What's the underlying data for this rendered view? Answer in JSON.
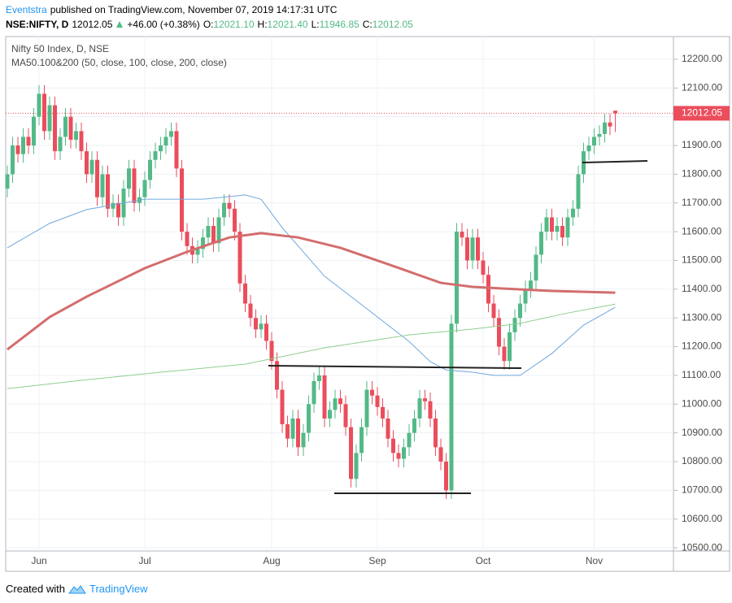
{
  "header": {
    "author": "Eventstra",
    "published": "published on TradingView.com, November 07, 2019 14:17:31 UTC",
    "symbol": "NSE:NIFTY, D",
    "last": "12012.05",
    "change": "+46.00 (+0.38%)",
    "ohlc": [
      {
        "label": "O:",
        "value": "12021.10"
      },
      {
        "label": "H:",
        "value": "12021.40"
      },
      {
        "label": "L:",
        "value": "11946.85"
      },
      {
        "label": "C:",
        "value": "12012.05"
      }
    ]
  },
  "footer": {
    "text": "Created with",
    "brand": "TradingView"
  },
  "chart_data": {
    "type": "candlestick",
    "title": "Nifty 50 Index, D, NSE",
    "subtitle": "MA50.100&200 (50, close, 100, close, 200, close)",
    "categories": [
      null,
      null,
      null,
      null,
      null,
      null,
      "Jun",
      null,
      null,
      null,
      null,
      null,
      null,
      null,
      null,
      null,
      null,
      null,
      null,
      null,
      null,
      null,
      null,
      null,
      null,
      null,
      "Jul",
      null,
      null,
      null,
      null,
      null,
      null,
      null,
      null,
      null,
      null,
      null,
      null,
      null,
      null,
      null,
      null,
      null,
      null,
      null,
      null,
      null,
      null,
      null,
      "Aug",
      null,
      null,
      null,
      null,
      null,
      null,
      null,
      null,
      null,
      null,
      null,
      null,
      null,
      null,
      null,
      null,
      null,
      null,
      null,
      "Sep",
      null,
      null,
      null,
      null,
      null,
      null,
      null,
      null,
      null,
      null,
      null,
      null,
      null,
      null,
      null,
      null,
      null,
      null,
      null,
      "Oct",
      null,
      null,
      null,
      null,
      null,
      null,
      null,
      null,
      null,
      null,
      null,
      null,
      null,
      null,
      null,
      null,
      null,
      null,
      null,
      null,
      "Nov",
      null,
      null,
      null,
      null
    ],
    "open": [
      11750,
      11800,
      11900,
      11870,
      11930,
      11900,
      12000,
      12080,
      11950,
      12040,
      11880,
      11930,
      12000,
      11920,
      11950,
      11880,
      11800,
      11850,
      11720,
      11800,
      11680,
      11700,
      11650,
      11750,
      11820,
      11700,
      11720,
      11780,
      11850,
      11880,
      11900,
      11930,
      11950,
      11820,
      11600,
      11550,
      11520,
      11540,
      11580,
      11620,
      11560,
      11650,
      11700,
      11680,
      11600,
      11420,
      11350,
      11300,
      11260,
      11280,
      11220,
      11150,
      11050,
      10930,
      10880,
      10950,
      10850,
      10900,
      11000,
      11080,
      11100,
      10950,
      10980,
      11020,
      11000,
      10920,
      10740,
      10830,
      10920,
      11050,
      11030,
      10990,
      10950,
      10880,
      10830,
      10810,
      10850,
      10900,
      10950,
      11020,
      11010,
      10950,
      10850,
      10800,
      10700,
      11280,
      11600,
      11580,
      11500,
      11580,
      11500,
      11450,
      11350,
      11300,
      11200,
      11150,
      11250,
      11300,
      11350,
      11400,
      11430,
      11520,
      11600,
      11650,
      11600,
      11620,
      11580,
      11650,
      11680,
      11800,
      11880,
      11900,
      11930,
      11940,
      11980,
      12021.1
    ],
    "high": [
      11830,
      11930,
      11930,
      11960,
      11960,
      12030,
      12110,
      12110,
      12070,
      12070,
      11960,
      12030,
      12030,
      11980,
      11980,
      11910,
      11880,
      11880,
      11830,
      11830,
      11730,
      11730,
      11780,
      11850,
      11850,
      11750,
      11810,
      11880,
      11910,
      11930,
      11960,
      11980,
      11980,
      11850,
      11630,
      11580,
      11570,
      11610,
      11650,
      11650,
      11680,
      11730,
      11730,
      11710,
      11630,
      11450,
      11380,
      11330,
      11310,
      11310,
      11250,
      11180,
      11080,
      10960,
      10980,
      10980,
      10930,
      11030,
      11110,
      11130,
      11130,
      11010,
      11050,
      11050,
      11030,
      10950,
      10860,
      10950,
      11080,
      11080,
      11060,
      11020,
      10980,
      10910,
      10860,
      10880,
      10930,
      10980,
      11050,
      11050,
      11040,
      10980,
      10880,
      10830,
      11310,
      11630,
      11630,
      11610,
      11610,
      11610,
      11530,
      11480,
      11380,
      11330,
      11230,
      11280,
      11330,
      11380,
      11430,
      11460,
      11550,
      11630,
      11680,
      11680,
      11650,
      11650,
      11680,
      11710,
      11830,
      11910,
      11930,
      11960,
      11970,
      12010,
      12010,
      12021.4
    ],
    "low": [
      11720,
      11770,
      11840,
      11840,
      11870,
      11870,
      11970,
      11920,
      11920,
      11850,
      11850,
      11900,
      11890,
      11890,
      11850,
      11770,
      11770,
      11690,
      11690,
      11650,
      11650,
      11620,
      11620,
      11720,
      11670,
      11670,
      11690,
      11750,
      11820,
      11850,
      11870,
      11900,
      11790,
      11570,
      11520,
      11490,
      11490,
      11510,
      11550,
      11530,
      11530,
      11620,
      11650,
      11570,
      11390,
      11320,
      11270,
      11230,
      11230,
      11190,
      11120,
      11020,
      10900,
      10850,
      10850,
      10820,
      10820,
      10870,
      10970,
      11050,
      10920,
      10920,
      10950,
      10970,
      10890,
      10710,
      10710,
      10800,
      10890,
      11000,
      10960,
      10920,
      10850,
      10800,
      10780,
      10780,
      10820,
      10870,
      10920,
      10980,
      10920,
      10820,
      10770,
      10670,
      10670,
      11250,
      11550,
      11470,
      11470,
      11470,
      11420,
      11320,
      11270,
      11170,
      11120,
      11120,
      11220,
      11270,
      11320,
      11370,
      11400,
      11490,
      11570,
      11570,
      11570,
      11550,
      11550,
      11620,
      11650,
      11770,
      11850,
      11870,
      11900,
      11910,
      11936.05,
      11946.85
    ],
    "close": [
      11800,
      11900,
      11870,
      11930,
      11900,
      12000,
      12080,
      11950,
      12040,
      11880,
      11930,
      12000,
      11920,
      11950,
      11880,
      11800,
      11850,
      11720,
      11800,
      11680,
      11700,
      11650,
      11750,
      11820,
      11700,
      11720,
      11780,
      11850,
      11880,
      11900,
      11930,
      11950,
      11820,
      11600,
      11550,
      11520,
      11540,
      11580,
      11620,
      11560,
      11650,
      11700,
      11680,
      11600,
      11420,
      11350,
      11300,
      11260,
      11280,
      11220,
      11150,
      11050,
      10930,
      10880,
      10950,
      10850,
      10900,
      11000,
      11080,
      11100,
      10950,
      10980,
      11020,
      11000,
      10920,
      10740,
      10830,
      10920,
      11050,
      11030,
      10990,
      10950,
      10880,
      10830,
      10810,
      10850,
      10900,
      10950,
      11020,
      11010,
      10950,
      10850,
      10800,
      10700,
      11280,
      11600,
      11580,
      11500,
      11580,
      11500,
      11450,
      11350,
      11300,
      11200,
      11150,
      11250,
      11300,
      11350,
      11400,
      11430,
      11520,
      11600,
      11650,
      11600,
      11620,
      11580,
      11650,
      11680,
      11800,
      11880,
      11900,
      11930,
      11940,
      11980,
      11966.05,
      12012.05
    ],
    "up_color": "#53b987",
    "down_color": "#eb4d5c",
    "series": [
      {
        "color": "#6fa8dc",
        "width": 1,
        "x": [
          0,
          8,
          15,
          26,
          37,
          45,
          48,
          52,
          60,
          68,
          76,
          80,
          83,
          88,
          92,
          97,
          103,
          109,
          115
        ],
        "values": [
          11544,
          11629,
          11677,
          11713,
          11713,
          11728,
          11713,
          11614,
          11445,
          11332,
          11218,
          11148,
          11119,
          11111,
          11100,
          11100,
          11176,
          11275,
          11337
        ]
      },
      {
        "color": "#d36d6d",
        "width": 3,
        "x": [
          0,
          8,
          15,
          26,
          34,
          42,
          48,
          55,
          63,
          72,
          82,
          88,
          94,
          103,
          115
        ],
        "values": [
          11190,
          11303,
          11374,
          11473,
          11530,
          11580,
          11595,
          11580,
          11544,
          11487,
          11422,
          11408,
          11402,
          11394,
          11388
        ]
      },
      {
        "color": "#8fce8f",
        "width": 1,
        "x": [
          0,
          14,
          29,
          45,
          60,
          76,
          88,
          97,
          106,
          115
        ],
        "values": [
          11054,
          11083,
          11111,
          11139,
          11196,
          11241,
          11261,
          11281,
          11317,
          11348
        ]
      }
    ],
    "ylim": [
      10489,
      12279
    ],
    "yticks": [
      {
        "value": 10500,
        "label": "10500.00"
      },
      {
        "value": 10600,
        "label": "10600.00"
      },
      {
        "value": 10700,
        "label": "10700.00"
      },
      {
        "value": 10800,
        "label": "10800.00"
      },
      {
        "value": 10900,
        "label": "10900.00"
      },
      {
        "value": 11000,
        "label": "11000.00"
      },
      {
        "value": 11100,
        "label": "11100.00"
      },
      {
        "value": 11200,
        "label": "11200.00"
      },
      {
        "value": 11300,
        "label": "11300.00"
      },
      {
        "value": 11400,
        "label": "11400.00"
      },
      {
        "value": 11500,
        "label": "11500.00"
      },
      {
        "value": 11600,
        "label": "11600.00"
      },
      {
        "value": 11700,
        "label": "11700.00"
      },
      {
        "value": 11800,
        "label": "11800.00"
      },
      {
        "value": 11900,
        "label": "11900.00"
      },
      {
        "value": 12000,
        "label": "12000.00"
      },
      {
        "value": 12100,
        "label": "12100.00"
      },
      {
        "value": 12200,
        "label": "12200.00"
      }
    ],
    "grid": true,
    "last_value_label": "12012.05"
  }
}
